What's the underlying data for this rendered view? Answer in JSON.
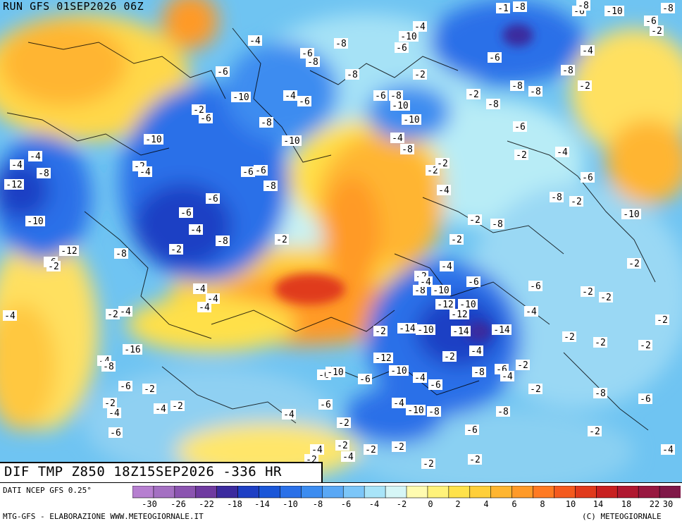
{
  "header": {
    "run_label": "RUN GFS 01SEP2026 06Z"
  },
  "title_bar": {
    "text": "DIF TMP Z850 18Z15SEP2026 -336 HR"
  },
  "footer": {
    "source": "DATI NCEP GFS 0.25°",
    "producer": "MTG-GFS - ELABORAZIONE WWW.METEOGIORNALE.IT",
    "copyright": "(C) METEOGIORNALE"
  },
  "legend": {
    "ticks": [
      "-30",
      "-26",
      "-22",
      "-18",
      "-14",
      "-10",
      "-8",
      "-6",
      "-4",
      "-2",
      "0",
      "2",
      "4",
      "6",
      "8",
      "10",
      "14",
      "18",
      "22",
      "30"
    ],
    "colors": [
      "#b67fd0",
      "#a470c2",
      "#8b54b0",
      "#6f3aa0",
      "#3b2a9e",
      "#1e3fc4",
      "#1a56d8",
      "#2a70e8",
      "#3c8cf0",
      "#5aa8f5",
      "#7cc6f8",
      "#a8e4f8",
      "#d6f6f6",
      "#fffbb0",
      "#fff27a",
      "#ffe24a",
      "#ffcf3a",
      "#ffb530",
      "#ff9a28",
      "#ff7a22",
      "#f45a1e",
      "#e03a1c",
      "#c82020",
      "#b01830",
      "#981840",
      "#801848"
    ]
  },
  "map": {
    "contour_labels": [
      "-1",
      "-8",
      "-6",
      "-8",
      "-10",
      "-8",
      "-6",
      "-2",
      "-4",
      "-10",
      "-6",
      "-8",
      "-6",
      "-8",
      "-4",
      "-4",
      "-6",
      "-8",
      "-2",
      "-8",
      "-6",
      "-10",
      "-4",
      "-6",
      "-2",
      "-6",
      "-8",
      "-2",
      "-8",
      "-10",
      "-6",
      "-8",
      "-10",
      "-8",
      "-8",
      "-2",
      "-6",
      "-10",
      "-10",
      "-4",
      "-8",
      "-2",
      "-4",
      "-4",
      "-4",
      "-8",
      "-2",
      "-4",
      "-6",
      "-6",
      "-2",
      "-2",
      "-12",
      "-4",
      "-6",
      "-8",
      "-6",
      "-8",
      "-2",
      "-6",
      "-10",
      "-4",
      "-8",
      "-2",
      "-8",
      "-10",
      "-2",
      "-2",
      "-2",
      "-12",
      "-8",
      "-2",
      "-4",
      "-6",
      "-2",
      "-4",
      "-4",
      "-4",
      "-2",
      "-8",
      "-10",
      "-6",
      "-4",
      "-6",
      "-2",
      "-2",
      "-12",
      "-10",
      "-4",
      "-2",
      "-4",
      "-4",
      "-2",
      "-12",
      "-14",
      "-10",
      "-14",
      "-14",
      "-2",
      "-2",
      "-2",
      "-2",
      "-16",
      "-4",
      "-12",
      "-2",
      "-4",
      "-8",
      "-10",
      "-8",
      "-6",
      "-4",
      "-2",
      "-6",
      "-10",
      "-6",
      "-4",
      "-6",
      "-2",
      "-6",
      "-2",
      "-8",
      "-4",
      "-10",
      "-8",
      "-6",
      "-2",
      "-4",
      "-4",
      "-2",
      "-6",
      "-4",
      "-2",
      "-8",
      "-6",
      "-6",
      "-2",
      "-4",
      "-2",
      "-2",
      "-2",
      "-4",
      "-4",
      "-2",
      "-2",
      "-2"
    ]
  }
}
